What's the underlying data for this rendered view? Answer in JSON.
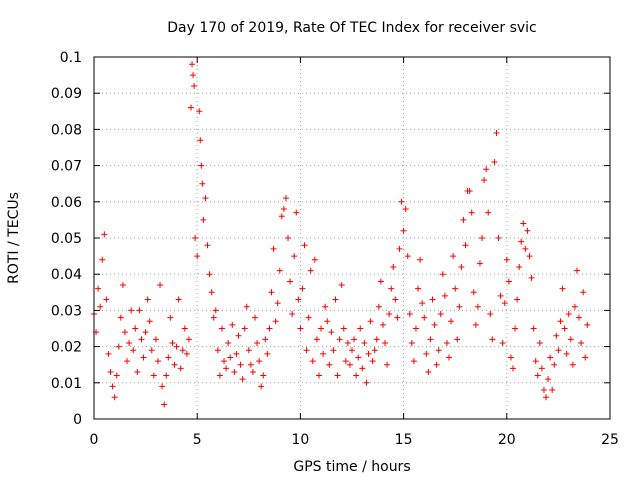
{
  "chart_data": {
    "type": "scatter",
    "title": "Day 170 of 2019, Rate Of TEC Index for receiver svic",
    "xlabel": "GPS time / hours",
    "ylabel": "ROTI / TECUs",
    "xlim": [
      0,
      25
    ],
    "ylim": [
      0,
      0.1
    ],
    "xticks": [
      0,
      5,
      10,
      15,
      20,
      25
    ],
    "xtick_labels": [
      "0",
      "5",
      "10",
      "15",
      "20",
      "25"
    ],
    "yticks": [
      0,
      0.01,
      0.02,
      0.03,
      0.04,
      0.05,
      0.06,
      0.07,
      0.08,
      0.09,
      0.1
    ],
    "ytick_labels": [
      "0",
      "0.01",
      "0.02",
      "0.03",
      "0.04",
      "0.05",
      "0.06",
      "0.07",
      "0.08",
      "0.09",
      "0.1"
    ],
    "grid": true,
    "marker": "+",
    "color": "#ff0000",
    "series": [
      {
        "name": "ROTI",
        "points": [
          [
            0.0,
            0.029
          ],
          [
            0.1,
            0.024
          ],
          [
            0.2,
            0.036
          ],
          [
            0.3,
            0.031
          ],
          [
            0.4,
            0.044
          ],
          [
            0.5,
            0.051
          ],
          [
            0.6,
            0.033
          ],
          [
            0.7,
            0.018
          ],
          [
            0.8,
            0.013
          ],
          [
            0.9,
            0.009
          ],
          [
            1.0,
            0.006
          ],
          [
            1.1,
            0.012
          ],
          [
            1.2,
            0.02
          ],
          [
            1.3,
            0.028
          ],
          [
            1.4,
            0.037
          ],
          [
            1.5,
            0.024
          ],
          [
            1.6,
            0.016
          ],
          [
            1.7,
            0.021
          ],
          [
            1.8,
            0.03
          ],
          [
            1.9,
            0.019
          ],
          [
            2.0,
            0.025
          ],
          [
            2.1,
            0.013
          ],
          [
            2.2,
            0.03
          ],
          [
            2.3,
            0.022
          ],
          [
            2.4,
            0.017
          ],
          [
            2.5,
            0.024
          ],
          [
            2.6,
            0.033
          ],
          [
            2.7,
            0.027
          ],
          [
            2.8,
            0.019
          ],
          [
            2.9,
            0.012
          ],
          [
            3.0,
            0.022
          ],
          [
            3.1,
            0.016
          ],
          [
            3.2,
            0.037
          ],
          [
            3.3,
            0.009
          ],
          [
            3.4,
            0.004
          ],
          [
            3.5,
            0.012
          ],
          [
            3.6,
            0.017
          ],
          [
            3.7,
            0.028
          ],
          [
            3.8,
            0.021
          ],
          [
            3.9,
            0.015
          ],
          [
            4.0,
            0.02
          ],
          [
            4.1,
            0.033
          ],
          [
            4.2,
            0.014
          ],
          [
            4.3,
            0.019
          ],
          [
            4.4,
            0.025
          ],
          [
            4.5,
            0.018
          ],
          [
            4.6,
            0.022
          ],
          [
            4.7,
            0.086
          ],
          [
            4.75,
            0.098
          ],
          [
            4.8,
            0.095
          ],
          [
            4.85,
            0.092
          ],
          [
            4.9,
            0.05
          ],
          [
            5.0,
            0.045
          ],
          [
            5.1,
            0.085
          ],
          [
            5.15,
            0.077
          ],
          [
            5.2,
            0.07
          ],
          [
            5.25,
            0.065
          ],
          [
            5.3,
            0.055
          ],
          [
            5.4,
            0.061
          ],
          [
            5.5,
            0.048
          ],
          [
            5.6,
            0.04
          ],
          [
            5.7,
            0.035
          ],
          [
            5.8,
            0.028
          ],
          [
            5.9,
            0.03
          ],
          [
            6.0,
            0.019
          ],
          [
            6.1,
            0.012
          ],
          [
            6.2,
            0.025
          ],
          [
            6.3,
            0.016
          ],
          [
            6.4,
            0.014
          ],
          [
            6.5,
            0.021
          ],
          [
            6.6,
            0.017
          ],
          [
            6.7,
            0.026
          ],
          [
            6.8,
            0.013
          ],
          [
            6.9,
            0.018
          ],
          [
            7.0,
            0.023
          ],
          [
            7.1,
            0.015
          ],
          [
            7.2,
            0.011
          ],
          [
            7.3,
            0.025
          ],
          [
            7.4,
            0.031
          ],
          [
            7.5,
            0.019
          ],
          [
            7.6,
            0.015
          ],
          [
            7.7,
            0.013
          ],
          [
            7.8,
            0.028
          ],
          [
            7.9,
            0.021
          ],
          [
            8.0,
            0.016
          ],
          [
            8.1,
            0.009
          ],
          [
            8.2,
            0.012
          ],
          [
            8.3,
            0.022
          ],
          [
            8.4,
            0.018
          ],
          [
            8.5,
            0.025
          ],
          [
            8.6,
            0.035
          ],
          [
            8.7,
            0.047
          ],
          [
            8.8,
            0.027
          ],
          [
            8.9,
            0.032
          ],
          [
            9.0,
            0.041
          ],
          [
            9.1,
            0.056
          ],
          [
            9.2,
            0.058
          ],
          [
            9.3,
            0.061
          ],
          [
            9.4,
            0.05
          ],
          [
            9.5,
            0.038
          ],
          [
            9.6,
            0.029
          ],
          [
            9.7,
            0.045
          ],
          [
            9.8,
            0.057
          ],
          [
            9.9,
            0.033
          ],
          [
            10.0,
            0.025
          ],
          [
            10.1,
            0.036
          ],
          [
            10.2,
            0.048
          ],
          [
            10.3,
            0.019
          ],
          [
            10.4,
            0.028
          ],
          [
            10.5,
            0.041
          ],
          [
            10.6,
            0.016
          ],
          [
            10.7,
            0.044
          ],
          [
            10.8,
            0.022
          ],
          [
            10.9,
            0.012
          ],
          [
            11.0,
            0.025
          ],
          [
            11.1,
            0.018
          ],
          [
            11.2,
            0.031
          ],
          [
            11.3,
            0.027
          ],
          [
            11.4,
            0.015
          ],
          [
            11.5,
            0.024
          ],
          [
            11.6,
            0.019
          ],
          [
            11.7,
            0.033
          ],
          [
            11.8,
            0.012
          ],
          [
            11.9,
            0.022
          ],
          [
            12.0,
            0.037
          ],
          [
            12.1,
            0.025
          ],
          [
            12.2,
            0.016
          ],
          [
            12.3,
            0.021
          ],
          [
            12.4,
            0.015
          ],
          [
            12.5,
            0.019
          ],
          [
            12.6,
            0.022
          ],
          [
            12.7,
            0.012
          ],
          [
            12.8,
            0.017
          ],
          [
            12.9,
            0.025
          ],
          [
            13.0,
            0.014
          ],
          [
            13.1,
            0.021
          ],
          [
            13.2,
            0.01
          ],
          [
            13.3,
            0.018
          ],
          [
            13.4,
            0.027
          ],
          [
            13.5,
            0.016
          ],
          [
            13.6,
            0.019
          ],
          [
            13.7,
            0.022
          ],
          [
            13.8,
            0.031
          ],
          [
            13.9,
            0.038
          ],
          [
            14.0,
            0.026
          ],
          [
            14.1,
            0.021
          ],
          [
            14.2,
            0.015
          ],
          [
            14.3,
            0.029
          ],
          [
            14.4,
            0.036
          ],
          [
            14.5,
            0.042
          ],
          [
            14.6,
            0.033
          ],
          [
            14.7,
            0.028
          ],
          [
            14.8,
            0.047
          ],
          [
            14.9,
            0.06
          ],
          [
            15.0,
            0.052
          ],
          [
            15.1,
            0.058
          ],
          [
            15.2,
            0.045
          ],
          [
            15.3,
            0.029
          ],
          [
            15.4,
            0.021
          ],
          [
            15.5,
            0.016
          ],
          [
            15.6,
            0.025
          ],
          [
            15.7,
            0.036
          ],
          [
            15.8,
            0.044
          ],
          [
            15.9,
            0.032
          ],
          [
            16.0,
            0.028
          ],
          [
            16.1,
            0.018
          ],
          [
            16.2,
            0.013
          ],
          [
            16.3,
            0.022
          ],
          [
            16.4,
            0.033
          ],
          [
            16.5,
            0.026
          ],
          [
            16.6,
            0.015
          ],
          [
            16.7,
            0.019
          ],
          [
            16.8,
            0.029
          ],
          [
            16.9,
            0.04
          ],
          [
            17.0,
            0.034
          ],
          [
            17.1,
            0.021
          ],
          [
            17.2,
            0.017
          ],
          [
            17.3,
            0.027
          ],
          [
            17.4,
            0.045
          ],
          [
            17.5,
            0.036
          ],
          [
            17.6,
            0.022
          ],
          [
            17.7,
            0.031
          ],
          [
            17.8,
            0.042
          ],
          [
            17.9,
            0.055
          ],
          [
            18.0,
            0.048
          ],
          [
            18.1,
            0.063
          ],
          [
            18.2,
            0.063
          ],
          [
            18.3,
            0.057
          ],
          [
            18.4,
            0.035
          ],
          [
            18.5,
            0.026
          ],
          [
            18.6,
            0.031
          ],
          [
            18.7,
            0.043
          ],
          [
            18.8,
            0.05
          ],
          [
            18.9,
            0.066
          ],
          [
            19.0,
            0.069
          ],
          [
            19.1,
            0.057
          ],
          [
            19.2,
            0.029
          ],
          [
            19.3,
            0.022
          ],
          [
            19.4,
            0.071
          ],
          [
            19.5,
            0.079
          ],
          [
            19.6,
            0.05
          ],
          [
            19.7,
            0.034
          ],
          [
            19.8,
            0.021
          ],
          [
            19.9,
            0.032
          ],
          [
            20.0,
            0.044
          ],
          [
            20.1,
            0.038
          ],
          [
            20.2,
            0.017
          ],
          [
            20.3,
            0.014
          ],
          [
            20.4,
            0.025
          ],
          [
            20.5,
            0.033
          ],
          [
            20.6,
            0.042
          ],
          [
            20.7,
            0.049
          ],
          [
            20.8,
            0.054
          ],
          [
            20.9,
            0.047
          ],
          [
            21.0,
            0.052
          ],
          [
            21.1,
            0.045
          ],
          [
            21.2,
            0.039
          ],
          [
            21.3,
            0.025
          ],
          [
            21.4,
            0.016
          ],
          [
            21.5,
            0.012
          ],
          [
            21.6,
            0.021
          ],
          [
            21.7,
            0.014
          ],
          [
            21.8,
            0.008
          ],
          [
            21.9,
            0.006
          ],
          [
            22.0,
            0.011
          ],
          [
            22.1,
            0.017
          ],
          [
            22.2,
            0.008
          ],
          [
            22.3,
            0.015
          ],
          [
            22.4,
            0.023
          ],
          [
            22.5,
            0.019
          ],
          [
            22.6,
            0.027
          ],
          [
            22.7,
            0.036
          ],
          [
            22.8,
            0.025
          ],
          [
            22.9,
            0.018
          ],
          [
            23.0,
            0.029
          ],
          [
            23.1,
            0.022
          ],
          [
            23.2,
            0.015
          ],
          [
            23.3,
            0.031
          ],
          [
            23.4,
            0.041
          ],
          [
            23.5,
            0.028
          ],
          [
            23.6,
            0.021
          ],
          [
            23.7,
            0.035
          ],
          [
            23.8,
            0.017
          ],
          [
            23.9,
            0.026
          ]
        ]
      }
    ]
  }
}
